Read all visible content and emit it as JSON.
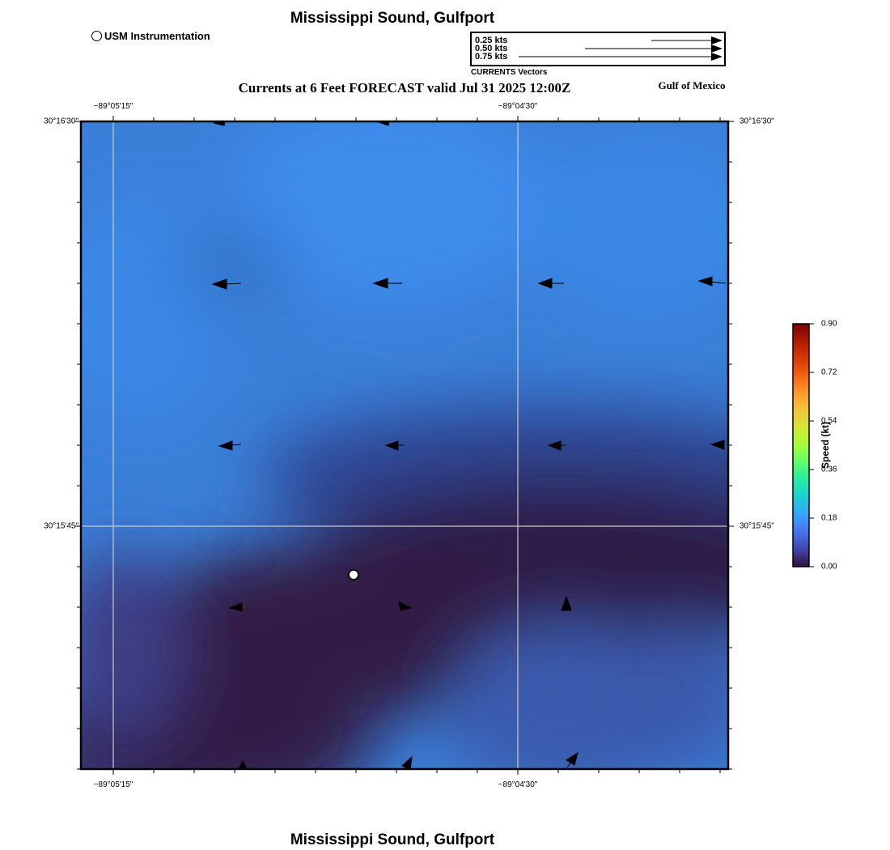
{
  "title_top": "Mississippi Sound, Gulfport",
  "title_bottom": "Mississippi Sound, Gulfport",
  "subtitle": "Currents at 6 Feet FORECAST valid Jul 31 2025 12:00Z",
  "region_label": "Gulf of Mexico",
  "station_legend": {
    "label": "USM Instrumentation",
    "icon": "open-circle-icon"
  },
  "vector_legend": {
    "caption": "CURRENTS Vectors",
    "rows": [
      {
        "label": "0.25 kts",
        "speed": 0.25
      },
      {
        "label": "0.50 kts",
        "speed": 0.5
      },
      {
        "label": "0.75 kts",
        "speed": 0.75
      }
    ]
  },
  "axes": {
    "lon_labels": [
      "−89°05'15\"",
      "−89°04'30\""
    ],
    "lat_labels": [
      "30°16'30\"",
      "30°15'45\""
    ]
  },
  "colorbar": {
    "title": "Speed (kt)",
    "min": 0.0,
    "max": 0.9,
    "ticks": [
      "0.90",
      "0.72",
      "0.54",
      "0.36",
      "0.18",
      "0.00"
    ],
    "colors": [
      "#30123b",
      "#4145ab",
      "#4675ed",
      "#39a2fc",
      "#1bcfd4",
      "#24eca6",
      "#61fc6c",
      "#a4fc3b",
      "#d1e834",
      "#f3c63a",
      "#fe9b2d",
      "#f36315",
      "#d93806",
      "#b11901",
      "#7a0403"
    ]
  },
  "station_marker": {
    "name": "USM Instrumentation"
  },
  "current_vectors_kts": [
    {
      "u": -0.03,
      "v": -0.002
    },
    {
      "u": -0.03,
      "v": -0.001
    },
    {
      "u": -0.11,
      "v": -0.002
    },
    {
      "u": -0.11,
      "v": 0.0
    },
    {
      "u": -0.1,
      "v": 0.0
    },
    {
      "u": -0.1,
      "v": 0.006
    },
    {
      "u": -0.09,
      "v": -0.003
    },
    {
      "u": -0.06,
      "v": 0.0
    },
    {
      "u": -0.06,
      "v": 0.0
    },
    {
      "u": -0.05,
      "v": 0.0
    },
    {
      "u": -0.05,
      "v": 0.002
    },
    {
      "u": 0.05,
      "v": -0.02
    },
    {
      "u": 0.0,
      "v": 0.04
    },
    {
      "u": 0.0,
      "v": 0.03
    },
    {
      "u": 0.02,
      "v": 0.03
    },
    {
      "u": 0.04,
      "v": 0.05
    }
  ],
  "colors": {
    "frame": "#000000",
    "grid": "#c8c8c8",
    "vector": "#000000"
  }
}
